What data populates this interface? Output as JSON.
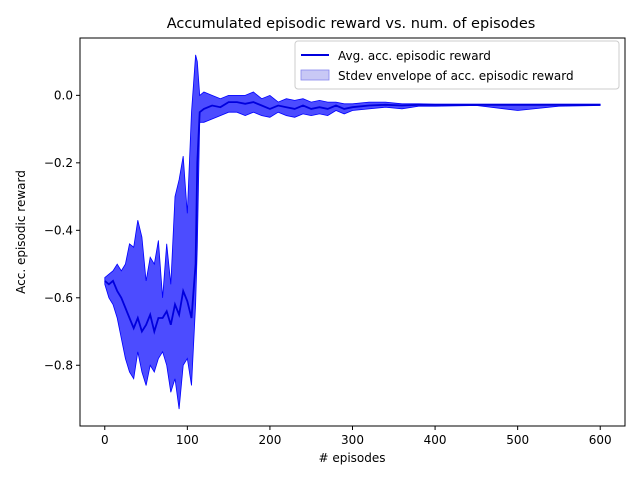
{
  "chart_data": {
    "type": "line",
    "title": "Accumulated episodic reward vs. num. of episodes",
    "xlabel": "# episodes",
    "ylabel": "Acc. episodic reward",
    "xlim": [
      -30,
      630
    ],
    "ylim": [
      -0.98,
      0.17
    ],
    "xticks": [
      0,
      100,
      200,
      300,
      400,
      500,
      600
    ],
    "yticks": [
      -0.8,
      -0.6,
      -0.4,
      -0.2,
      0.0
    ],
    "xtick_labels": [
      "0",
      "100",
      "200",
      "300",
      "400",
      "500",
      "600"
    ],
    "ytick_labels": [
      "−0.8",
      "−0.6",
      "−0.4",
      "−0.2",
      "0.0"
    ],
    "legend_position": "top-right",
    "colors": {
      "line": "#0000dd",
      "fill": "#0000ff",
      "fill_light": "#c8c8f5"
    },
    "series": [
      {
        "name": "Avg. acc. episodic reward",
        "kind": "line",
        "x": [
          0,
          5,
          10,
          15,
          20,
          25,
          30,
          35,
          40,
          45,
          50,
          55,
          60,
          65,
          70,
          75,
          80,
          85,
          90,
          95,
          100,
          105,
          110,
          112,
          115,
          120,
          130,
          140,
          150,
          160,
          170,
          180,
          190,
          200,
          210,
          220,
          230,
          240,
          250,
          260,
          270,
          280,
          290,
          300,
          320,
          340,
          360,
          380,
          400,
          450,
          500,
          550,
          600
        ],
        "y": [
          -0.55,
          -0.56,
          -0.55,
          -0.58,
          -0.6,
          -0.63,
          -0.66,
          -0.69,
          -0.66,
          -0.7,
          -0.68,
          -0.65,
          -0.7,
          -0.66,
          -0.66,
          -0.64,
          -0.68,
          -0.62,
          -0.65,
          -0.58,
          -0.61,
          -0.66,
          -0.5,
          -0.2,
          -0.05,
          -0.04,
          -0.03,
          -0.035,
          -0.02,
          -0.02,
          -0.025,
          -0.02,
          -0.03,
          -0.04,
          -0.03,
          -0.035,
          -0.04,
          -0.03,
          -0.04,
          -0.035,
          -0.04,
          -0.03,
          -0.04,
          -0.035,
          -0.03,
          -0.028,
          -0.03,
          -0.028,
          -0.028,
          -0.028,
          -0.028,
          -0.028,
          -0.028
        ]
      },
      {
        "name": "Stdev envelope of acc. episodic reward",
        "kind": "band",
        "x": [
          0,
          5,
          10,
          15,
          20,
          25,
          30,
          35,
          40,
          45,
          50,
          55,
          60,
          65,
          70,
          75,
          80,
          85,
          90,
          95,
          100,
          105,
          110,
          112,
          115,
          120,
          130,
          140,
          150,
          160,
          170,
          180,
          190,
          200,
          210,
          220,
          230,
          240,
          250,
          260,
          270,
          280,
          290,
          300,
          320,
          340,
          360,
          380,
          400,
          450,
          500,
          550,
          600
        ],
        "upper": [
          -0.54,
          -0.53,
          -0.52,
          -0.5,
          -0.52,
          -0.5,
          -0.44,
          -0.45,
          -0.37,
          -0.42,
          -0.55,
          -0.48,
          -0.5,
          -0.43,
          -0.6,
          -0.44,
          -0.56,
          -0.3,
          -0.25,
          -0.18,
          -0.35,
          -0.05,
          0.12,
          0.1,
          0.0,
          0.01,
          0.0,
          -0.01,
          0.0,
          0.0,
          0.0,
          0.01,
          -0.01,
          0.0,
          -0.02,
          -0.01,
          -0.015,
          -0.01,
          -0.02,
          -0.015,
          -0.02,
          -0.02,
          -0.025,
          -0.025,
          -0.02,
          -0.02,
          -0.025,
          -0.025,
          -0.026,
          -0.026,
          -0.026,
          -0.026,
          -0.026
        ],
        "lower": [
          -0.56,
          -0.6,
          -0.62,
          -0.66,
          -0.72,
          -0.78,
          -0.82,
          -0.84,
          -0.76,
          -0.82,
          -0.86,
          -0.8,
          -0.82,
          -0.78,
          -0.76,
          -0.8,
          -0.88,
          -0.84,
          -0.93,
          -0.8,
          -0.78,
          -0.86,
          -0.62,
          -0.45,
          -0.08,
          -0.08,
          -0.07,
          -0.06,
          -0.05,
          -0.05,
          -0.06,
          -0.05,
          -0.06,
          -0.065,
          -0.05,
          -0.06,
          -0.065,
          -0.055,
          -0.06,
          -0.055,
          -0.06,
          -0.045,
          -0.055,
          -0.045,
          -0.04,
          -0.035,
          -0.04,
          -0.032,
          -0.032,
          -0.03,
          -0.045,
          -0.032,
          -0.03
        ]
      }
    ]
  }
}
